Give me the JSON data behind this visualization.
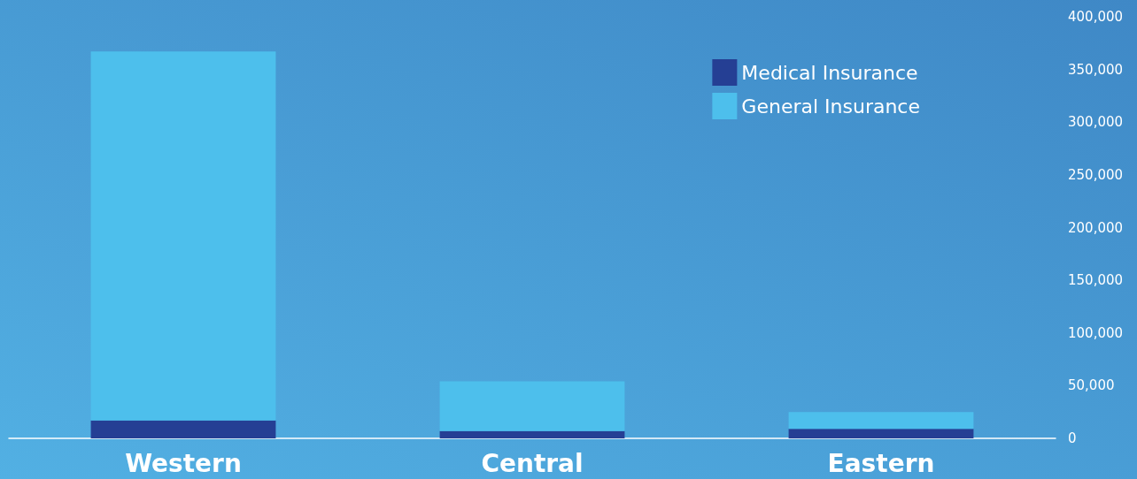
{
  "chart_data": {
    "type": "bar",
    "stacked": true,
    "categories": [
      "Western",
      "Central",
      "Eastern"
    ],
    "series": [
      {
        "name": "Medical Insurance",
        "color": "#253f94",
        "values": [
          17000,
          7000,
          9000
        ]
      },
      {
        "name": "General Insurance",
        "color": "#4dbfec",
        "values": [
          350000,
          47000,
          16000
        ]
      }
    ],
    "ylim": [
      0,
      400000
    ],
    "yticks": [
      0,
      {
        "value": 50000,
        "label": "50,000"
      },
      {
        "value": 100000,
        "label": "100,000"
      },
      {
        "value": 150000,
        "label": "150,000"
      },
      {
        "value": 200000,
        "label": "200,000"
      },
      {
        "value": 250000,
        "label": "250,000"
      },
      {
        "value": 300000,
        "label": "300,000"
      },
      {
        "value": 350000,
        "label": "350,000"
      },
      {
        "value": 400000,
        "label": "400,000"
      }
    ],
    "grid": false,
    "legend": "top right"
  }
}
